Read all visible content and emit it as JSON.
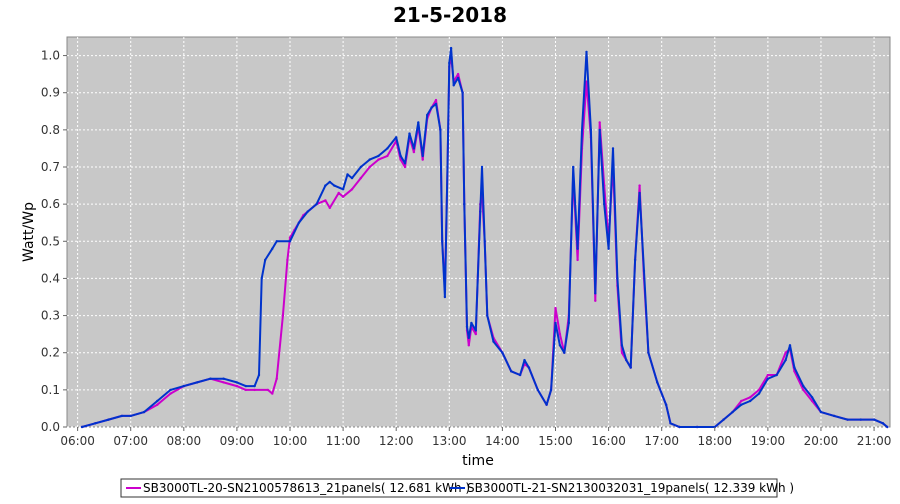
{
  "chart_data": {
    "type": "line",
    "title": "21-5-2018",
    "xlabel": "time",
    "ylabel": "Watt/Wp",
    "xlim": [
      "05:48",
      "21:18"
    ],
    "ylim": [
      0,
      1.05
    ],
    "x_ticks": [
      "06:00",
      "07:00",
      "08:00",
      "09:00",
      "10:00",
      "11:00",
      "12:00",
      "13:00",
      "14:00",
      "15:00",
      "16:00",
      "17:00",
      "18:00",
      "19:00",
      "20:00",
      "21:00"
    ],
    "y_ticks": [
      "0.0",
      "0.1",
      "0.2",
      "0.3",
      "0.4",
      "0.5",
      "0.6",
      "0.7",
      "0.8",
      "0.9",
      "1.0"
    ],
    "grid": true,
    "legend_position": "bottom",
    "series": [
      {
        "name": "SB3000TL-20-SN2100578613_21panels( 12.681 kWh )",
        "color": "#cc00cc",
        "points": [
          [
            "06:05",
            0.0
          ],
          [
            "06:20",
            0.01
          ],
          [
            "06:35",
            0.02
          ],
          [
            "06:50",
            0.03
          ],
          [
            "07:00",
            0.03
          ],
          [
            "07:15",
            0.04
          ],
          [
            "07:30",
            0.06
          ],
          [
            "07:45",
            0.09
          ],
          [
            "08:00",
            0.11
          ],
          [
            "08:15",
            0.12
          ],
          [
            "08:30",
            0.13
          ],
          [
            "08:45",
            0.12
          ],
          [
            "09:00",
            0.11
          ],
          [
            "09:10",
            0.1
          ],
          [
            "09:20",
            0.1
          ],
          [
            "09:35",
            0.1
          ],
          [
            "09:40",
            0.09
          ],
          [
            "09:45",
            0.13
          ],
          [
            "09:52",
            0.3
          ],
          [
            "09:57",
            0.45
          ],
          [
            "10:00",
            0.51
          ],
          [
            "10:05",
            0.53
          ],
          [
            "10:15",
            0.57
          ],
          [
            "10:30",
            0.6
          ],
          [
            "10:40",
            0.61
          ],
          [
            "10:45",
            0.59
          ],
          [
            "10:55",
            0.63
          ],
          [
            "11:00",
            0.62
          ],
          [
            "11:10",
            0.64
          ],
          [
            "11:20",
            0.67
          ],
          [
            "11:30",
            0.7
          ],
          [
            "11:40",
            0.72
          ],
          [
            "11:50",
            0.73
          ],
          [
            "12:00",
            0.77
          ],
          [
            "12:05",
            0.72
          ],
          [
            "12:10",
            0.7
          ],
          [
            "12:15",
            0.78
          ],
          [
            "12:20",
            0.74
          ],
          [
            "12:25",
            0.81
          ],
          [
            "12:30",
            0.72
          ],
          [
            "12:35",
            0.83
          ],
          [
            "12:40",
            0.86
          ],
          [
            "12:45",
            0.88
          ],
          [
            "12:50",
            0.8
          ],
          [
            "12:52",
            0.5
          ],
          [
            "12:55",
            0.37
          ],
          [
            "12:58",
            0.7
          ],
          [
            "13:00",
            0.97
          ],
          [
            "13:02",
            1.0
          ],
          [
            "13:05",
            0.93
          ],
          [
            "13:10",
            0.95
          ],
          [
            "13:15",
            0.9
          ],
          [
            "13:17",
            0.6
          ],
          [
            "13:20",
            0.26
          ],
          [
            "13:22",
            0.22
          ],
          [
            "13:25",
            0.27
          ],
          [
            "13:30",
            0.25
          ],
          [
            "13:35",
            0.6
          ],
          [
            "13:37",
            0.63
          ],
          [
            "13:40",
            0.5
          ],
          [
            "13:43",
            0.3
          ],
          [
            "13:50",
            0.24
          ],
          [
            "14:00",
            0.2
          ],
          [
            "14:10",
            0.15
          ],
          [
            "14:20",
            0.14
          ],
          [
            "14:25",
            0.17
          ],
          [
            "14:30",
            0.16
          ],
          [
            "14:40",
            0.1
          ],
          [
            "14:50",
            0.06
          ],
          [
            "14:55",
            0.1
          ],
          [
            "15:00",
            0.32
          ],
          [
            "15:05",
            0.25
          ],
          [
            "15:10",
            0.2
          ],
          [
            "15:15",
            0.3
          ],
          [
            "15:20",
            0.68
          ],
          [
            "15:25",
            0.45
          ],
          [
            "15:30",
            0.75
          ],
          [
            "15:35",
            0.93
          ],
          [
            "15:40",
            0.78
          ],
          [
            "15:45",
            0.34
          ],
          [
            "15:50",
            0.82
          ],
          [
            "15:55",
            0.65
          ],
          [
            "16:00",
            0.5
          ],
          [
            "16:05",
            0.71
          ],
          [
            "16:10",
            0.38
          ],
          [
            "16:15",
            0.2
          ],
          [
            "16:20",
            0.18
          ],
          [
            "16:25",
            0.16
          ],
          [
            "16:30",
            0.45
          ],
          [
            "16:35",
            0.65
          ],
          [
            "16:40",
            0.4
          ],
          [
            "16:45",
            0.2
          ],
          [
            "16:55",
            0.12
          ],
          [
            "17:05",
            0.06
          ],
          [
            "17:10",
            0.01
          ],
          [
            "17:20",
            0.0
          ],
          [
            "17:40",
            0.0
          ],
          [
            "18:00",
            0.0
          ],
          [
            "18:10",
            0.02
          ],
          [
            "18:20",
            0.04
          ],
          [
            "18:30",
            0.07
          ],
          [
            "18:40",
            0.08
          ],
          [
            "18:50",
            0.1
          ],
          [
            "19:00",
            0.14
          ],
          [
            "19:10",
            0.14
          ],
          [
            "19:20",
            0.2
          ],
          [
            "19:25",
            0.21
          ],
          [
            "19:30",
            0.15
          ],
          [
            "19:40",
            0.1
          ],
          [
            "19:50",
            0.07
          ],
          [
            "20:00",
            0.04
          ],
          [
            "20:15",
            0.03
          ],
          [
            "20:30",
            0.02
          ],
          [
            "20:45",
            0.02
          ],
          [
            "21:00",
            0.02
          ],
          [
            "21:10",
            0.01
          ],
          [
            "21:15",
            0.0
          ]
        ]
      },
      {
        "name": "SB3000TL-21-SN2130032031_19panels( 12.339 kWh )",
        "color": "#0033cc",
        "points": [
          [
            "06:05",
            0.0
          ],
          [
            "06:20",
            0.01
          ],
          [
            "06:35",
            0.02
          ],
          [
            "06:50",
            0.03
          ],
          [
            "07:00",
            0.03
          ],
          [
            "07:15",
            0.04
          ],
          [
            "07:30",
            0.07
          ],
          [
            "07:45",
            0.1
          ],
          [
            "08:00",
            0.11
          ],
          [
            "08:15",
            0.12
          ],
          [
            "08:30",
            0.13
          ],
          [
            "08:45",
            0.13
          ],
          [
            "09:00",
            0.12
          ],
          [
            "09:10",
            0.11
          ],
          [
            "09:20",
            0.11
          ],
          [
            "09:25",
            0.14
          ],
          [
            "09:28",
            0.4
          ],
          [
            "09:32",
            0.45
          ],
          [
            "09:40",
            0.48
          ],
          [
            "09:45",
            0.5
          ],
          [
            "10:00",
            0.5
          ],
          [
            "10:10",
            0.55
          ],
          [
            "10:20",
            0.58
          ],
          [
            "10:30",
            0.6
          ],
          [
            "10:40",
            0.65
          ],
          [
            "10:45",
            0.66
          ],
          [
            "10:50",
            0.65
          ],
          [
            "11:00",
            0.64
          ],
          [
            "11:05",
            0.68
          ],
          [
            "11:10",
            0.67
          ],
          [
            "11:20",
            0.7
          ],
          [
            "11:30",
            0.72
          ],
          [
            "11:40",
            0.73
          ],
          [
            "11:50",
            0.75
          ],
          [
            "12:00",
            0.78
          ],
          [
            "12:05",
            0.73
          ],
          [
            "12:10",
            0.71
          ],
          [
            "12:15",
            0.79
          ],
          [
            "12:20",
            0.75
          ],
          [
            "12:25",
            0.82
          ],
          [
            "12:30",
            0.73
          ],
          [
            "12:35",
            0.84
          ],
          [
            "12:40",
            0.86
          ],
          [
            "12:45",
            0.87
          ],
          [
            "12:50",
            0.8
          ],
          [
            "12:52",
            0.5
          ],
          [
            "12:55",
            0.35
          ],
          [
            "12:58",
            0.7
          ],
          [
            "13:00",
            0.98
          ],
          [
            "13:02",
            1.02
          ],
          [
            "13:05",
            0.92
          ],
          [
            "13:10",
            0.94
          ],
          [
            "13:15",
            0.9
          ],
          [
            "13:17",
            0.6
          ],
          [
            "13:20",
            0.27
          ],
          [
            "13:22",
            0.24
          ],
          [
            "13:25",
            0.28
          ],
          [
            "13:30",
            0.26
          ],
          [
            "13:35",
            0.58
          ],
          [
            "13:37",
            0.7
          ],
          [
            "13:40",
            0.5
          ],
          [
            "13:43",
            0.3
          ],
          [
            "13:50",
            0.23
          ],
          [
            "14:00",
            0.2
          ],
          [
            "14:10",
            0.15
          ],
          [
            "14:20",
            0.14
          ],
          [
            "14:25",
            0.18
          ],
          [
            "14:30",
            0.16
          ],
          [
            "14:40",
            0.1
          ],
          [
            "14:50",
            0.06
          ],
          [
            "14:55",
            0.1
          ],
          [
            "15:00",
            0.28
          ],
          [
            "15:05",
            0.22
          ],
          [
            "15:10",
            0.2
          ],
          [
            "15:15",
            0.28
          ],
          [
            "15:20",
            0.7
          ],
          [
            "15:25",
            0.48
          ],
          [
            "15:30",
            0.8
          ],
          [
            "15:35",
            1.01
          ],
          [
            "15:40",
            0.8
          ],
          [
            "15:45",
            0.36
          ],
          [
            "15:50",
            0.8
          ],
          [
            "15:55",
            0.6
          ],
          [
            "16:00",
            0.48
          ],
          [
            "16:05",
            0.75
          ],
          [
            "16:10",
            0.4
          ],
          [
            "16:15",
            0.22
          ],
          [
            "16:20",
            0.18
          ],
          [
            "16:25",
            0.16
          ],
          [
            "16:30",
            0.45
          ],
          [
            "16:35",
            0.63
          ],
          [
            "16:40",
            0.42
          ],
          [
            "16:45",
            0.2
          ],
          [
            "16:55",
            0.12
          ],
          [
            "17:05",
            0.06
          ],
          [
            "17:10",
            0.01
          ],
          [
            "17:20",
            0.0
          ],
          [
            "17:40",
            0.0
          ],
          [
            "18:00",
            0.0
          ],
          [
            "18:10",
            0.02
          ],
          [
            "18:20",
            0.04
          ],
          [
            "18:30",
            0.06
          ],
          [
            "18:40",
            0.07
          ],
          [
            "18:50",
            0.09
          ],
          [
            "19:00",
            0.13
          ],
          [
            "19:10",
            0.14
          ],
          [
            "19:20",
            0.18
          ],
          [
            "19:25",
            0.22
          ],
          [
            "19:30",
            0.16
          ],
          [
            "19:40",
            0.11
          ],
          [
            "19:50",
            0.08
          ],
          [
            "20:00",
            0.04
          ],
          [
            "20:15",
            0.03
          ],
          [
            "20:30",
            0.02
          ],
          [
            "20:45",
            0.02
          ],
          [
            "21:00",
            0.02
          ],
          [
            "21:10",
            0.01
          ],
          [
            "21:15",
            0.0
          ]
        ]
      }
    ]
  }
}
